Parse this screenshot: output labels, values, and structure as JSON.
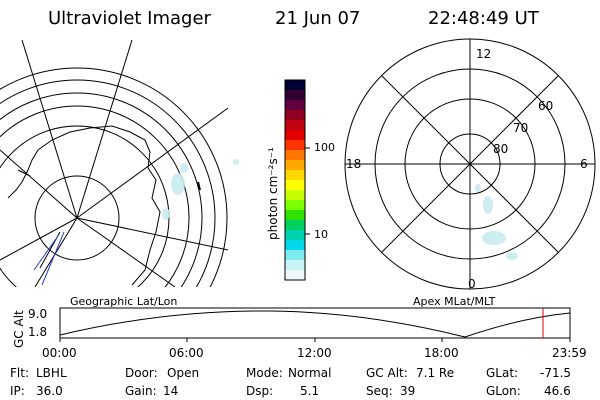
{
  "header": {
    "title": "Ultraviolet Imager",
    "date": "21 Jun 07",
    "time": "22:48:49 UT"
  },
  "colorbar": {
    "unit_label": "photon cm⁻²s⁻¹",
    "ticks": [
      "100",
      "10"
    ],
    "colors": [
      "#000033",
      "#300030",
      "#600040",
      "#900020",
      "#c00010",
      "#e00000",
      "#ff3300",
      "#ff7700",
      "#ffa800",
      "#ffd800",
      "#ffff00",
      "#c8ff00",
      "#7cff00",
      "#30e000",
      "#00d060",
      "#00d0b0",
      "#00d8e8",
      "#80eaf0",
      "#c8f4f4",
      "#eef8f8"
    ]
  },
  "left_map": {
    "label": "Geographic Lat/Lon"
  },
  "right_map": {
    "label": "Apex MLat/MLT",
    "hour_labels": {
      "top": "12",
      "left": "18",
      "right": "6",
      "bottom": "0"
    },
    "lat_labels": [
      "60",
      "70",
      "80"
    ]
  },
  "altitude_plot": {
    "ylabel": "GC Alt",
    "y_ticks": [
      "9.0",
      "1.8"
    ],
    "x_ticks": [
      "00:00",
      "06:00",
      "12:00",
      "18:00",
      "23:59"
    ],
    "current_marker_color": "#e00000"
  },
  "info": {
    "flt_label": "Flt:",
    "flt_value": "LBHL",
    "ip_label": "IP:",
    "ip_value": "36.0",
    "door_label": "Door:",
    "door_value": "Open",
    "gain_label": "Gain:",
    "gain_value": "14",
    "mode_label": "Mode:",
    "mode_value": "Normal",
    "dsp_label": "Dsp:",
    "dsp_value": "5.1",
    "gcalt_label": "GC Alt:",
    "gcalt_value": "7.1 Re",
    "seq_label": "Seq:",
    "seq_value": "39",
    "glat_label": "GLat:",
    "glat_value": "-71.5",
    "glon_label": "GLon:",
    "glon_value": "46.6"
  }
}
